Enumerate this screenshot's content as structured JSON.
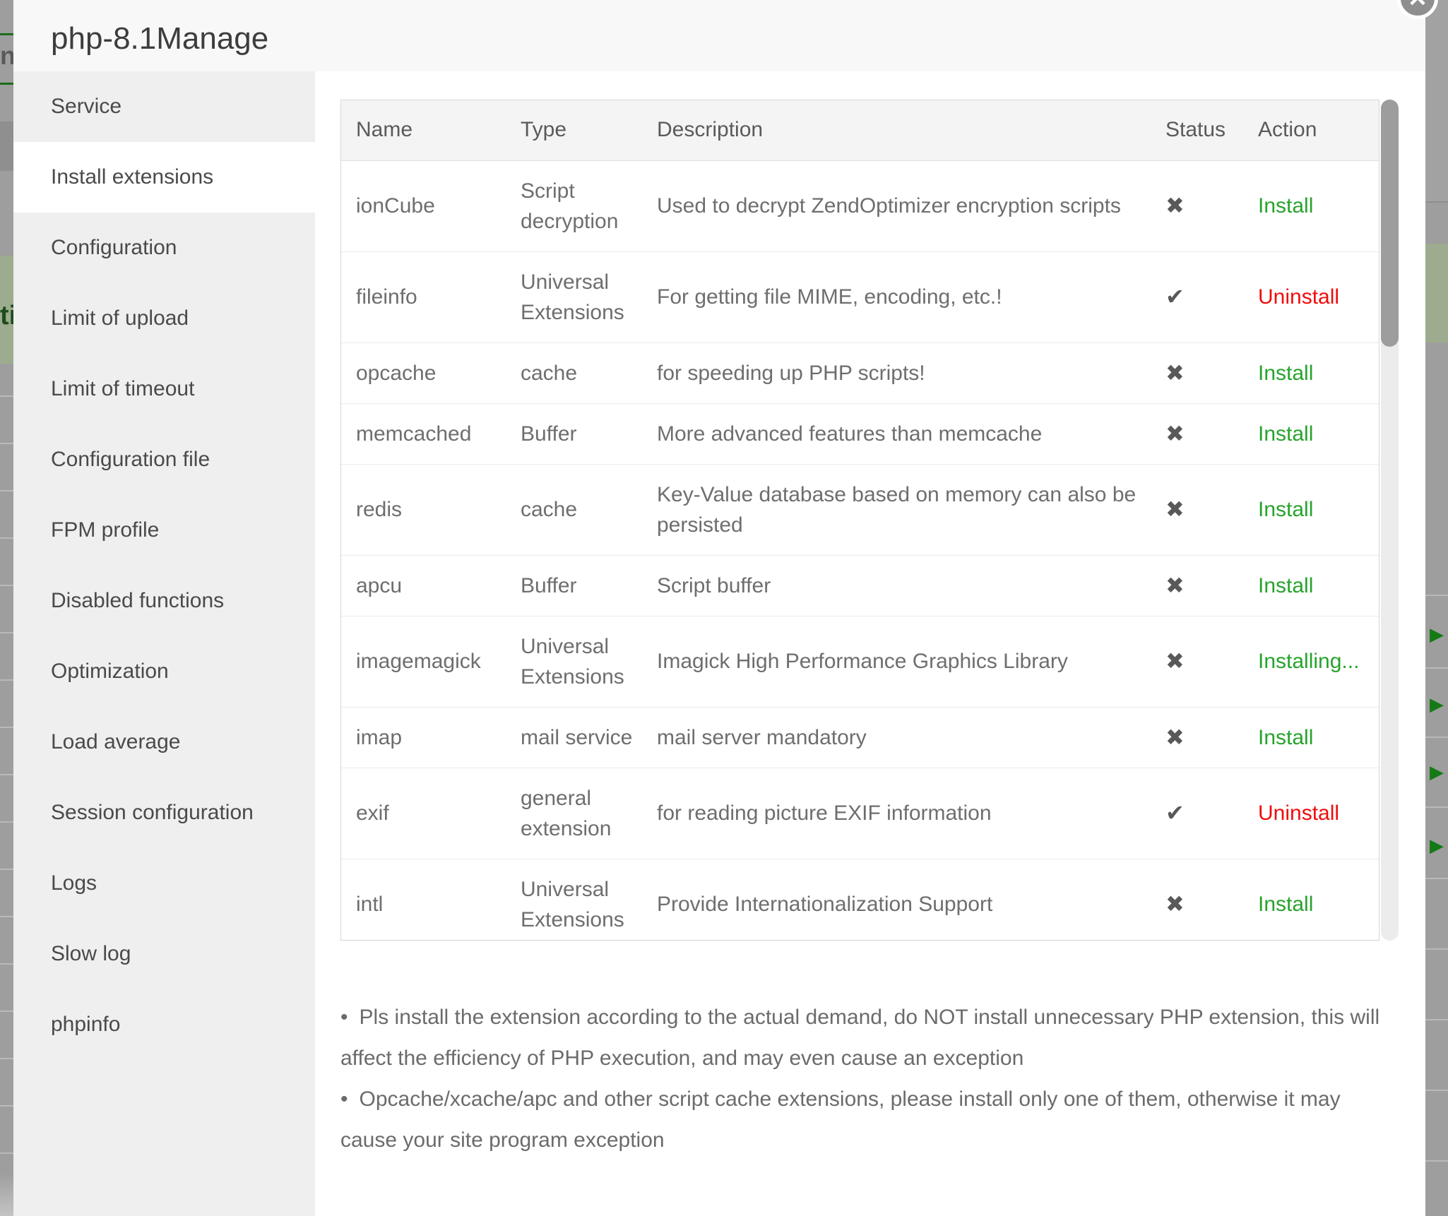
{
  "modal": {
    "title": "php-8.1Manage"
  },
  "icons": {
    "close": "✕",
    "installed_check": "✔",
    "not_installed_x": "✖",
    "bullet": "•",
    "play": "▶"
  },
  "colors": {
    "green": "#27a32c",
    "red": "#f00c0c"
  },
  "sidebar": {
    "items": [
      {
        "label": "Service",
        "selected": false
      },
      {
        "label": "Install extensions",
        "selected": true
      },
      {
        "label": "Configuration",
        "selected": false
      },
      {
        "label": "Limit of upload",
        "selected": false
      },
      {
        "label": "Limit of timeout",
        "selected": false
      },
      {
        "label": "Configuration file",
        "selected": false
      },
      {
        "label": "FPM profile",
        "selected": false
      },
      {
        "label": "Disabled functions",
        "selected": false
      },
      {
        "label": "Optimization",
        "selected": false
      },
      {
        "label": "Load average",
        "selected": false
      },
      {
        "label": "Session configuration",
        "selected": false
      },
      {
        "label": "Logs",
        "selected": false
      },
      {
        "label": "Slow log",
        "selected": false
      },
      {
        "label": "phpinfo",
        "selected": false
      }
    ]
  },
  "extensions": {
    "columns": [
      "Name",
      "Type",
      "Description",
      "Status",
      "Action"
    ],
    "rows": [
      {
        "name": "ionCube",
        "type": "Script decryption",
        "description": "Used to decrypt ZendOptimizer encryption scripts",
        "installed": false,
        "action": "Install",
        "action_kind": "install"
      },
      {
        "name": "fileinfo",
        "type": "Universal Extensions",
        "description": "For getting file MIME, encoding, etc.!",
        "installed": true,
        "action": "Uninstall",
        "action_kind": "uninstall"
      },
      {
        "name": "opcache",
        "type": "cache",
        "description": "for speeding up PHP scripts!",
        "installed": false,
        "action": "Install",
        "action_kind": "install"
      },
      {
        "name": "memcached",
        "type": "Buffer",
        "description": "More advanced features than memcache",
        "installed": false,
        "action": "Install",
        "action_kind": "install"
      },
      {
        "name": "redis",
        "type": "cache",
        "description": "Key-Value database based on memory can also be persisted",
        "installed": false,
        "action": "Install",
        "action_kind": "install"
      },
      {
        "name": "apcu",
        "type": "Buffer",
        "description": "Script buffer",
        "installed": false,
        "action": "Install",
        "action_kind": "install"
      },
      {
        "name": "imagemagick",
        "type": "Universal Extensions",
        "description": "Imagick High Performance Graphics Library",
        "installed": false,
        "action": "Installing...",
        "action_kind": "installing"
      },
      {
        "name": "imap",
        "type": "mail service",
        "description": "mail server mandatory",
        "installed": false,
        "action": "Install",
        "action_kind": "install"
      },
      {
        "name": "exif",
        "type": "general extension",
        "description": "for reading picture EXIF information",
        "installed": true,
        "action": "Uninstall",
        "action_kind": "uninstall"
      },
      {
        "name": "intl",
        "type": "Universal Extensions",
        "description": "Provide Internationalization Support",
        "installed": false,
        "action": "Install",
        "action_kind": "install"
      }
    ]
  },
  "notes": [
    "Pls install the extension according to the actual demand, do NOT install unnecessary PHP extension, this will affect the efficiency of PHP execution, and may even cause an exception",
    "Opcache/xcache/apc and other script cache extensions, please install only one of them, otherwise it may cause your site program exception"
  ],
  "background_page": {
    "left_text_fragment": "n",
    "left_green_fragment": "ti"
  }
}
